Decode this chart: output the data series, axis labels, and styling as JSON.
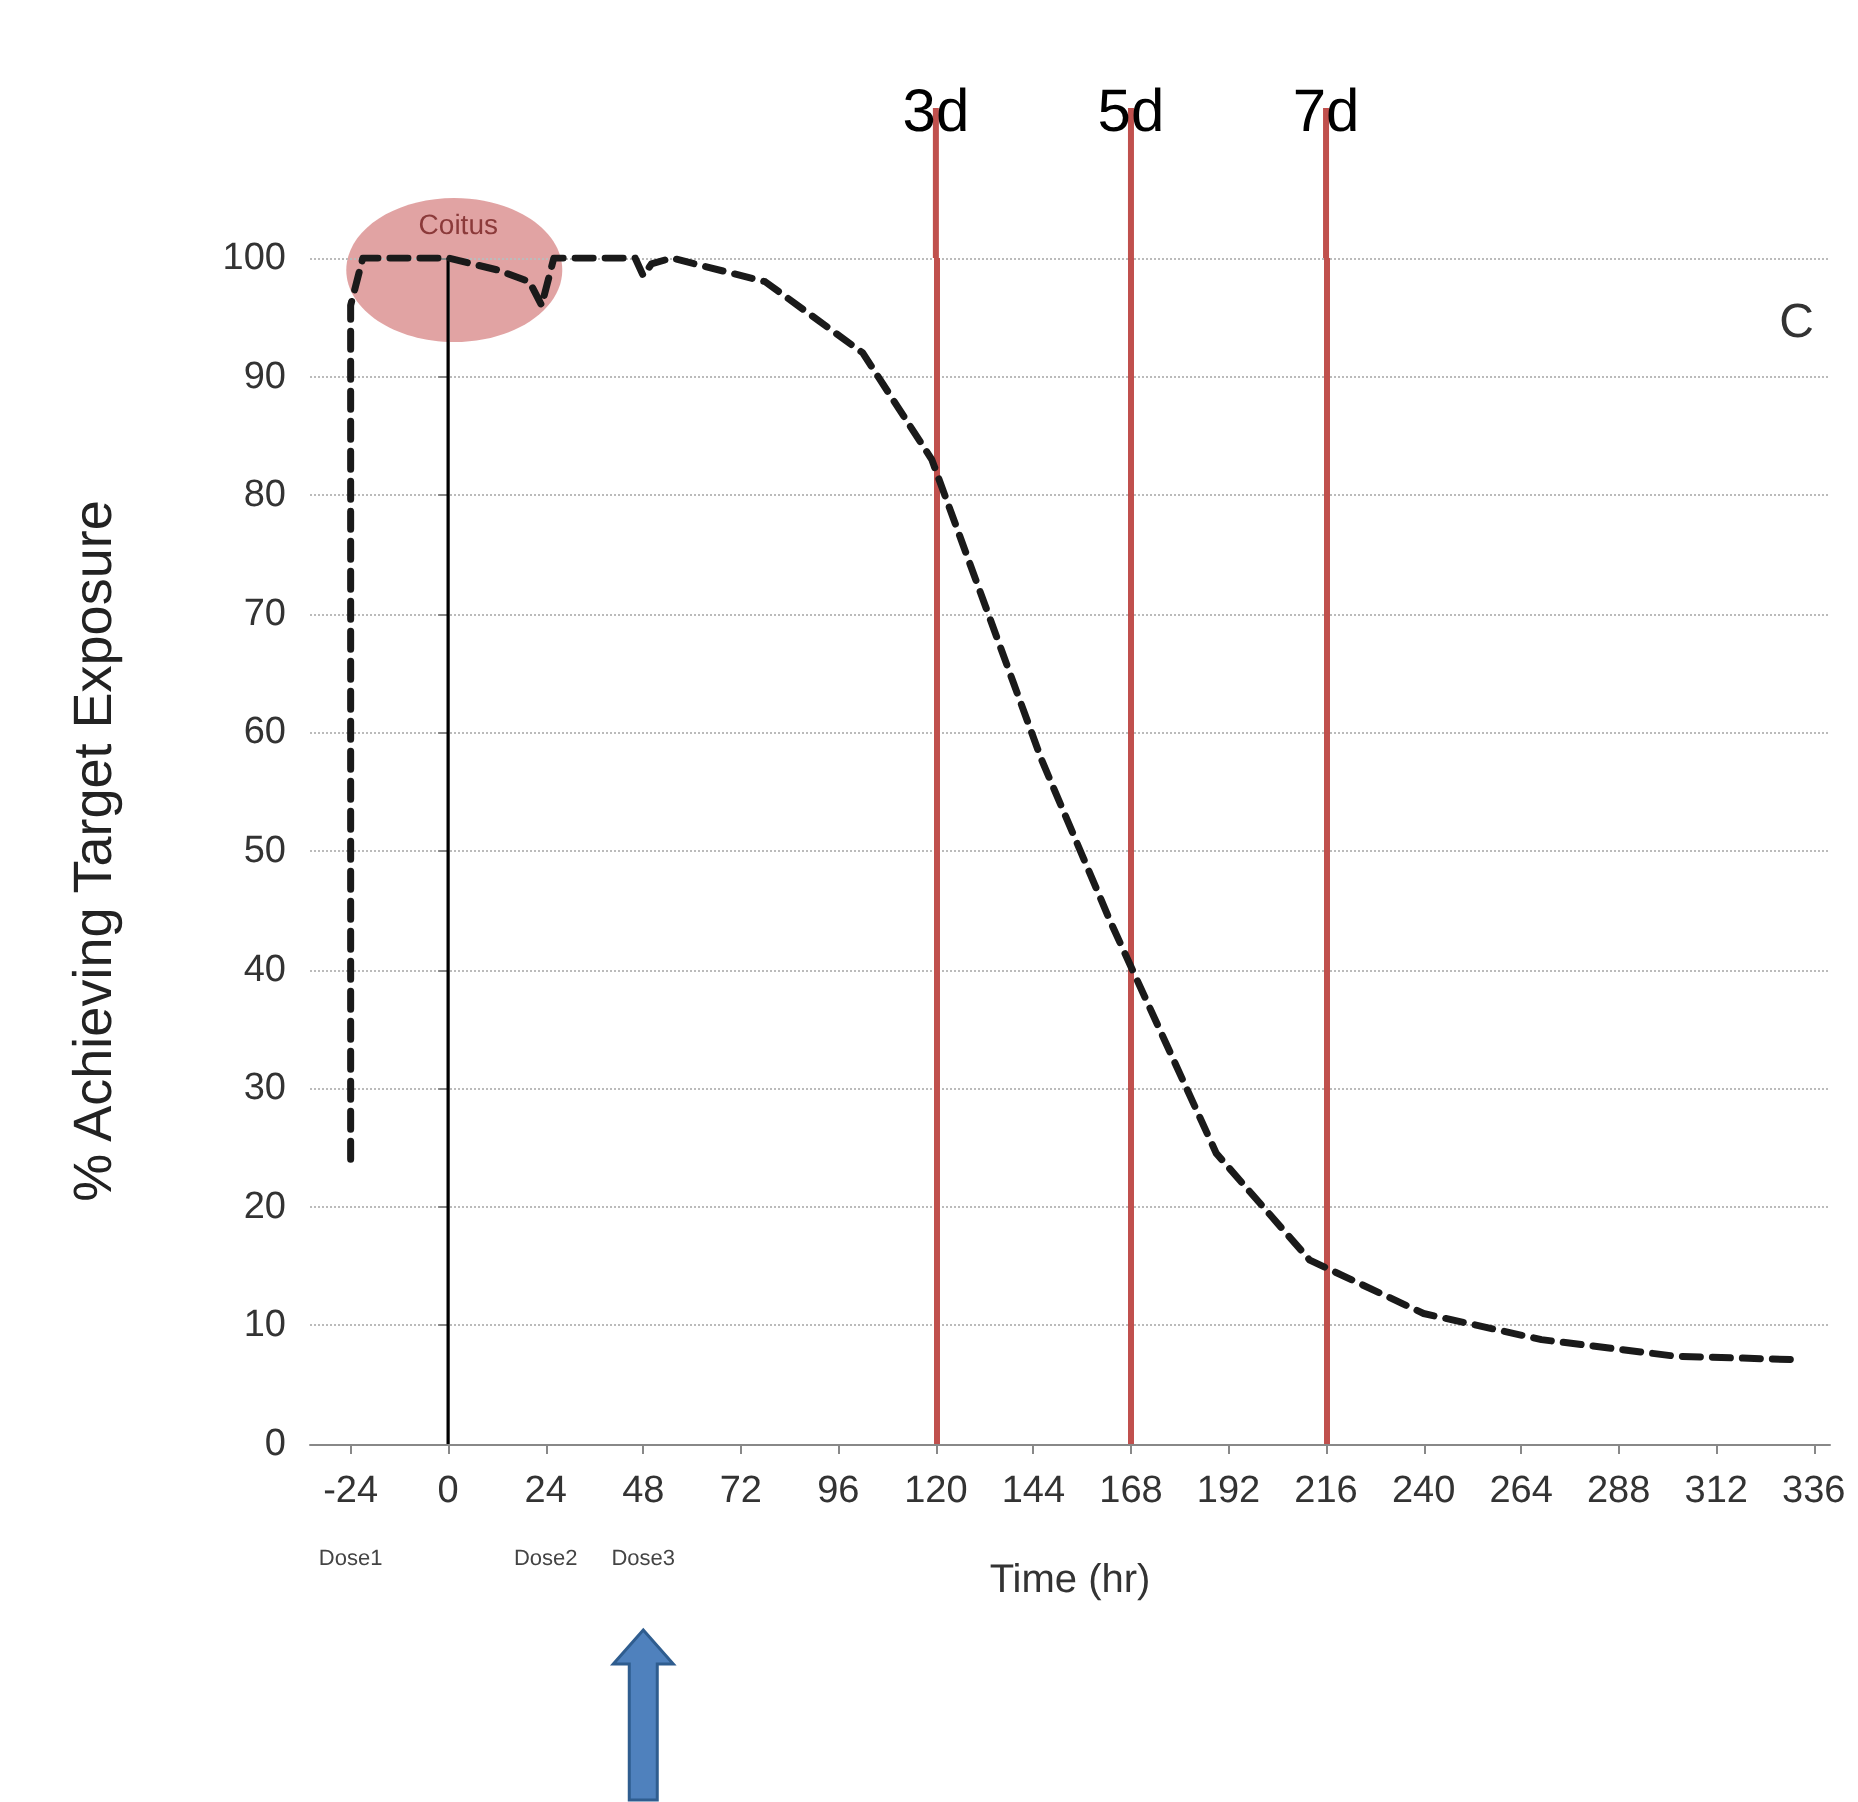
{
  "chart_data": {
    "type": "line",
    "xlabel": "Time (hr)",
    "ylabel": "% Achieving Target Exposure",
    "x": [
      -24,
      -24,
      -21,
      0,
      12,
      20,
      23,
      26,
      36,
      46,
      48,
      50,
      55,
      78,
      102,
      119,
      146,
      163,
      189,
      212,
      240,
      269,
      302,
      333
    ],
    "series": [
      {
        "color": "#1a1a1a",
        "values": [
          24,
          96,
          100,
          100,
          99,
          98,
          96,
          100,
          100,
          100,
          98.5,
          99.5,
          100,
          98,
          92,
          83,
          57.7,
          44,
          24.5,
          15.5,
          11,
          8.8,
          7.4,
          7.1
        ]
      }
    ],
    "line_style": "dashed",
    "marker": "none",
    "grid": "y",
    "xlim": [
      -34,
      340
    ],
    "xticks": [
      -24,
      0,
      24,
      48,
      72,
      96,
      120,
      144,
      168,
      192,
      216,
      240,
      264,
      288,
      312,
      336
    ],
    "ylim": [
      0,
      100
    ],
    "yticks": [
      0,
      10,
      20,
      30,
      40,
      50,
      60,
      70,
      80,
      90,
      100
    ],
    "ref_lines": [
      {
        "axis": "x",
        "value": 0,
        "label": null,
        "color": "#000000",
        "line_style": "solid"
      },
      {
        "axis": "x",
        "value": 120,
        "label": "3d",
        "color": "#c0504d",
        "line_style": "solid"
      },
      {
        "axis": "x",
        "value": 168,
        "label": "5d",
        "color": "#c0504d",
        "line_style": "solid"
      },
      {
        "axis": "x",
        "value": 216,
        "label": "7d",
        "color": "#c0504d",
        "line_style": "solid"
      }
    ],
    "annotations": [
      "Coitus",
      "C",
      "Dose1",
      "Dose2",
      "Dose3"
    ]
  }
}
